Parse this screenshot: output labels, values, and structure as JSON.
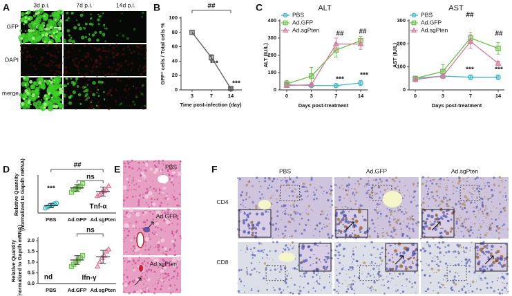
{
  "panel_letters": [
    "A",
    "B",
    "C",
    "D",
    "E",
    "F"
  ],
  "panel_a": {
    "columns": [
      "3d p.i.",
      "7d p.i.",
      "14d p.i."
    ],
    "rows": [
      "GFP",
      "DAPI",
      "merge"
    ]
  },
  "panel_e": {
    "labels": [
      "PBS",
      "Ad.GFP",
      "Ad.sgPten"
    ]
  },
  "panel_f": {
    "columns": [
      "PBS",
      "Ad.GFP",
      "Ad.sgPten"
    ],
    "rows": [
      "CD4",
      "CD8"
    ]
  },
  "chart_data": [
    {
      "type": "line",
      "ylabel": [
        "GFP⁺ cells / Total cells %"
      ],
      "xlabel": "Time post-infection (day)",
      "categories": [
        "3",
        "7",
        "14"
      ],
      "series": [
        {
          "color": "#555555",
          "marker": "square",
          "values": [
            80,
            45,
            2
          ],
          "errors": [
            3,
            4,
            1
          ]
        }
      ],
      "ylim": [
        0,
        100
      ],
      "yticks": [
        0,
        20,
        40,
        60,
        80,
        100
      ],
      "annotations": [
        "***",
        "***",
        "##"
      ]
    },
    {
      "type": "line",
      "title": "ALT",
      "ylabel": [
        "ALT (IU/L)"
      ],
      "xlabel": "Days post-treatment",
      "categories": [
        "0",
        "3",
        "7",
        "14"
      ],
      "series": [
        {
          "name": "PBS",
          "color": "#3fb5c4",
          "marker": "circle",
          "values": [
            30,
            25,
            25,
            40
          ],
          "errors": [
            15,
            10,
            10,
            15
          ]
        },
        {
          "name": "Ad.GFP",
          "color": "#6cbf4a",
          "marker": "square",
          "values": [
            35,
            80,
            230,
            285
          ],
          "errors": [
            20,
            50,
            40,
            25
          ]
        },
        {
          "name": "Ad.sgPten",
          "color": "#d9779a",
          "marker": "triangle",
          "values": [
            25,
            30,
            265,
            265
          ],
          "errors": [
            10,
            10,
            35,
            30
          ]
        }
      ],
      "ylim": [
        0,
        400
      ],
      "yticks": [
        0,
        100,
        200,
        300,
        400
      ],
      "annotations": [
        "##",
        "##",
        "***",
        "***"
      ]
    },
    {
      "type": "line",
      "title": "AST",
      "ylabel": [
        "AST (IU/L)"
      ],
      "xlabel": "Days post-treatment",
      "categories": [
        "0",
        "3",
        "7",
        "14"
      ],
      "series": [
        {
          "name": "PBS",
          "color": "#3fb5c4",
          "marker": "circle",
          "values": [
            50,
            60,
            55,
            55
          ],
          "errors": [
            10,
            10,
            10,
            10
          ]
        },
        {
          "name": "Ad.GFP",
          "color": "#6cbf4a",
          "marker": "square",
          "values": [
            50,
            80,
            225,
            180
          ],
          "errors": [
            10,
            30,
            25,
            25
          ]
        },
        {
          "name": "Ad.sgPten",
          "color": "#d9779a",
          "marker": "triangle",
          "values": [
            45,
            60,
            210,
            115
          ],
          "errors": [
            10,
            10,
            30,
            10
          ]
        }
      ],
      "ylim": [
        0,
        300
      ],
      "yticks": [
        0,
        100,
        200,
        300
      ],
      "annotations": [
        "##",
        "##",
        "***",
        "***"
      ]
    },
    {
      "type": "dot",
      "ylabel": [
        "Relative Quantity",
        "(normalized to Gapdh mRNA)"
      ],
      "categories": [
        "PBS",
        "Ad.GFP",
        "Ad.sgPten"
      ],
      "colors": [
        "#3fb5c4",
        "#6cbf4a",
        "#d9779a"
      ],
      "markers": [
        "circle",
        "square",
        "triangle"
      ],
      "points": [
        [
          0.8,
          1.0,
          1.2,
          1.3,
          1.5,
          1.6
        ],
        [
          3.4,
          3.8,
          4.0,
          4.1,
          4.4,
          4.8
        ],
        [
          2.8,
          3.0,
          3.4,
          3.6,
          3.8,
          4.4
        ]
      ],
      "means": [
        1.2,
        4.1,
        3.5
      ],
      "sds": [
        0.35,
        0.55,
        0.75
      ],
      "ylim": [
        0,
        6
      ],
      "annotations": [
        "***",
        "##",
        "ns",
        "Tnf-α"
      ]
    },
    {
      "type": "dot",
      "ylabel": [
        "Relative Quantity",
        "(normalized to Gapdh mRNA)"
      ],
      "categories": [
        "PBS",
        "Ad.GFP",
        "Ad.sgPten"
      ],
      "colors": [
        "#3fb5c4",
        "#6cbf4a",
        "#d9779a"
      ],
      "markers": [
        "circle",
        "square",
        "triangle"
      ],
      "points": [
        [],
        [
          0.8,
          0.9,
          1.0,
          1.1,
          1.2,
          1.3
        ],
        [
          0.8,
          1.0,
          1.2,
          1.3,
          1.5,
          1.6
        ]
      ],
      "means": [
        null,
        1.1,
        1.25
      ],
      "sds": [
        null,
        0.2,
        0.3
      ],
      "ylim": [
        0,
        2.1
      ],
      "yticks": [
        {
          "value": 0,
          "label": "0.0"
        },
        {
          "value": 0.5,
          "label": "0.5"
        },
        {
          "value": 1,
          "label": "1.0"
        },
        {
          "value": 1.5,
          "label": "1.5"
        },
        {
          "value": 2,
          "label": "2.0"
        }
      ],
      "annotations": [
        "nd",
        "ns",
        "Ifn-γ"
      ]
    }
  ]
}
